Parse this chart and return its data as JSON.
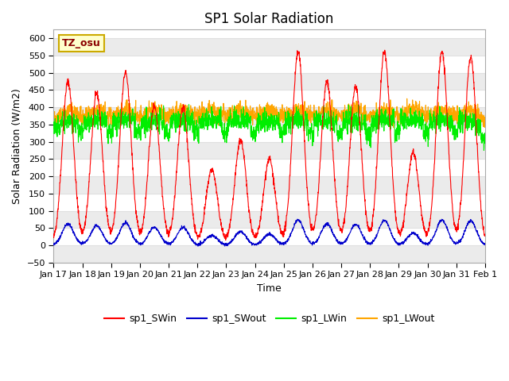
{
  "title": "SP1 Solar Radiation",
  "ylabel": "Solar Radiation (W/m2)",
  "xlabel": "Time",
  "ylim": [
    -50,
    625
  ],
  "yticks": [
    -50,
    0,
    50,
    100,
    150,
    200,
    250,
    300,
    350,
    400,
    450,
    500,
    550,
    600
  ],
  "colors": {
    "SWin": "#ff0000",
    "SWout": "#0000cc",
    "LWin": "#00ee00",
    "LWout": "#ffa500"
  },
  "tz_label": "TZ_osu",
  "legend_labels": [
    "sp1_SWin",
    "sp1_SWout",
    "sp1_LWin",
    "sp1_LWout"
  ],
  "x_tick_labels": [
    "Jan 17",
    "Jan 18",
    "Jan 19",
    "Jan 20",
    "Jan 21",
    "Jan 22",
    "Jan 23",
    "Jan 24",
    "Jan 25",
    "Jan 26",
    "Jan 27",
    "Jan 28",
    "Jan 29",
    "Jan 30",
    "Jan 31",
    "Feb 1"
  ],
  "background_color": "#ffffff",
  "grid_color": "#e0e0e0",
  "stripe_color": "#ebebeb"
}
